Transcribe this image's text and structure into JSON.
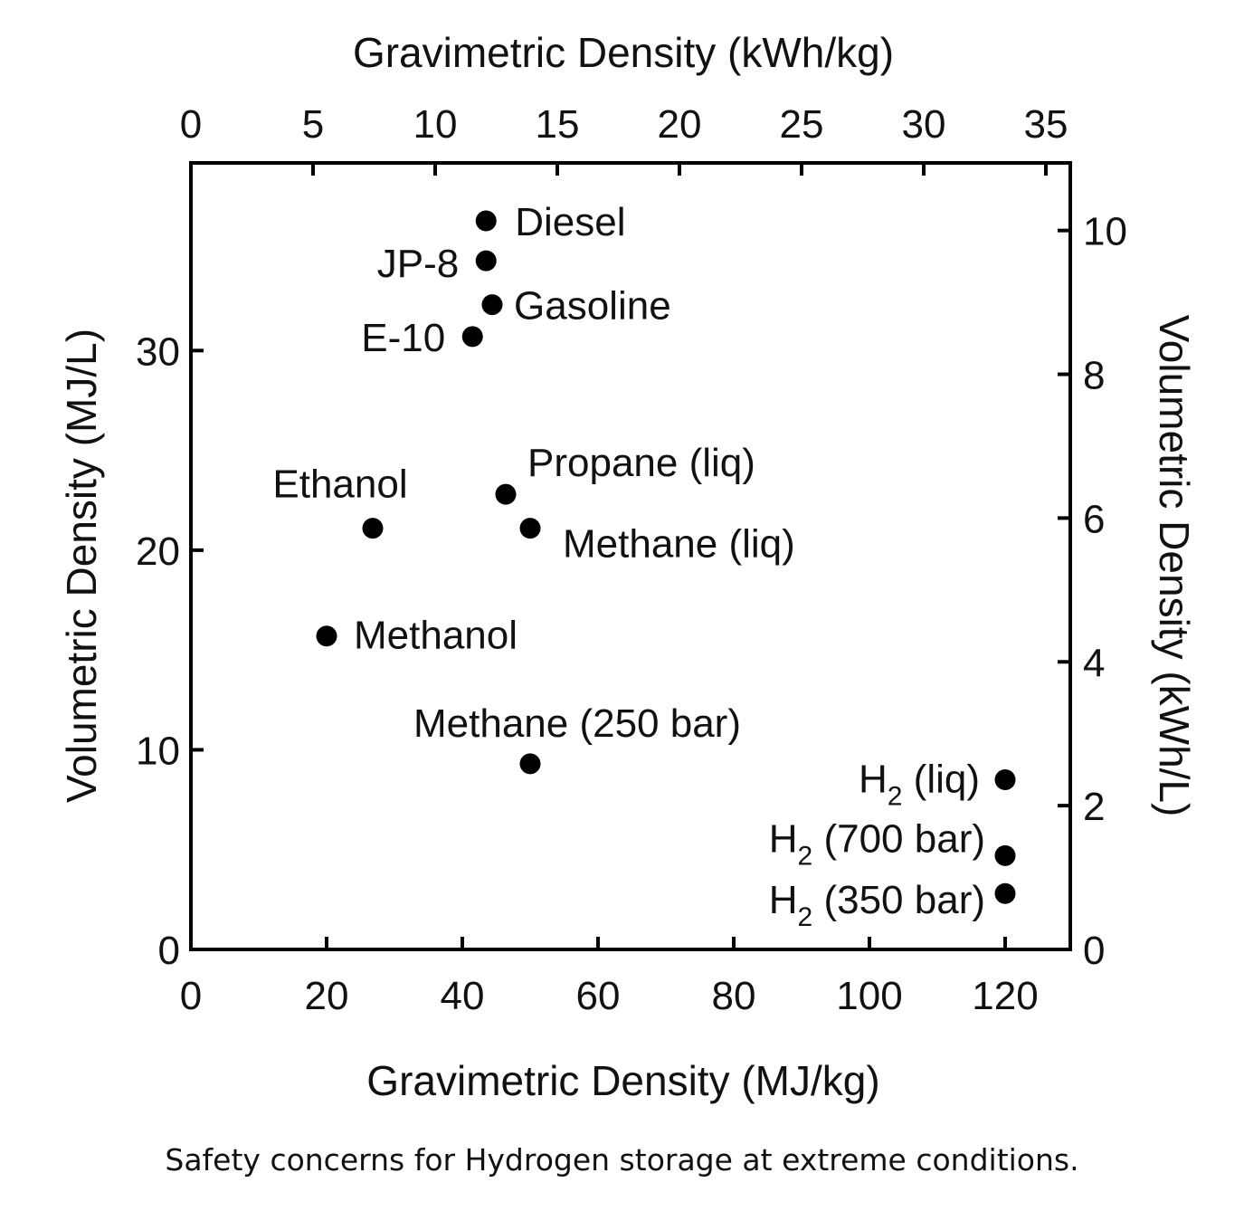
{
  "caption": "Safety concerns for Hydrogen storage at extreme conditions.",
  "chart_data": {
    "type": "scatter",
    "title": "",
    "xlabel": "Gravimetric Density (MJ/kg)",
    "ylabel": "Volumetric Density (MJ/L)",
    "x2label": "Gravimetric Density (kWh/kg)",
    "y2label": "Volumetric Density (kWh/L)",
    "xlim": [
      0,
      129.6
    ],
    "ylim": [
      0,
      39.4
    ],
    "x2lim": [
      0,
      36
    ],
    "y2lim": [
      0,
      10.94
    ],
    "xticks": [
      0,
      20,
      40,
      60,
      80,
      100,
      120
    ],
    "yticks": [
      0,
      10,
      20,
      30
    ],
    "x2ticks": [
      0,
      5,
      10,
      15,
      20,
      25,
      30,
      35
    ],
    "y2ticks": [
      0,
      2,
      4,
      6,
      8,
      10
    ],
    "grid": false,
    "legend": "none",
    "marker_color": "#000000",
    "points": [
      {
        "label": "Diesel",
        "x": 43.5,
        "y": 36.5
      },
      {
        "label": "JP-8",
        "x": 43.5,
        "y": 34.5
      },
      {
        "label": "Gasoline",
        "x": 44.4,
        "y": 32.3
      },
      {
        "label": "E-10",
        "x": 41.5,
        "y": 30.7
      },
      {
        "label": "Propane (liq)",
        "x": 46.4,
        "y": 22.8
      },
      {
        "label": "Ethanol",
        "x": 26.8,
        "y": 21.1
      },
      {
        "label": "Methane (liq)",
        "x": 50.0,
        "y": 21.1
      },
      {
        "label": "Methanol",
        "x": 20.0,
        "y": 15.7
      },
      {
        "label": "Methane (250 bar)",
        "x": 50.0,
        "y": 9.3
      },
      {
        "label": "H2 (liq)",
        "x": 120.0,
        "y": 8.5
      },
      {
        "label": "H2 (700 bar)",
        "x": 120.0,
        "y": 4.7
      },
      {
        "label": "H2 (350 bar)",
        "x": 120.0,
        "y": 2.8
      }
    ]
  }
}
